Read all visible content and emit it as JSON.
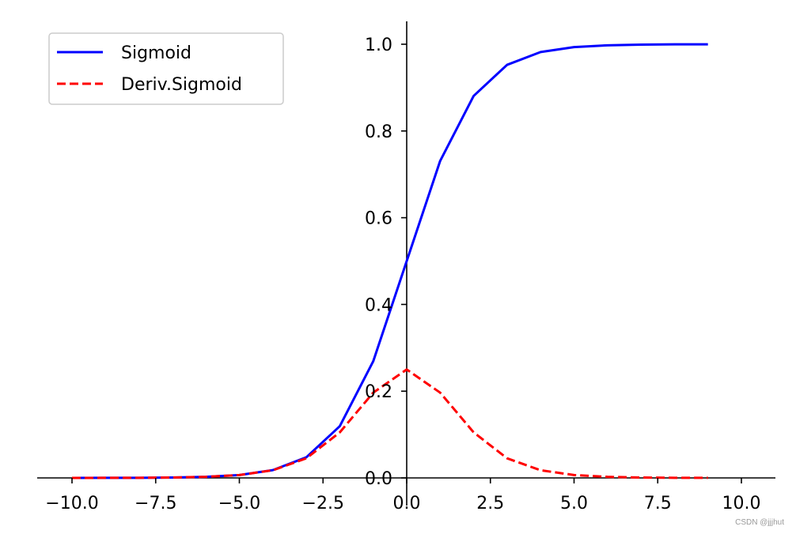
{
  "chart_data": {
    "type": "line",
    "title": "",
    "xlabel": "",
    "ylabel": "",
    "xlim": [
      -11.0,
      11.0
    ],
    "ylim": [
      0.0,
      1.05
    ],
    "grid": false,
    "legend_position": "top-left",
    "spines": "centered at zero",
    "x_ticks": [
      -10.0,
      -7.5,
      -5.0,
      -2.5,
      0.0,
      2.5,
      5.0,
      7.5,
      10.0
    ],
    "x_tick_labels": [
      "−10.0",
      "−7.5",
      "−5.0",
      "−2.5",
      "0.0",
      "2.5",
      "5.0",
      "7.5",
      "10.0"
    ],
    "y_ticks": [
      0.0,
      0.2,
      0.4,
      0.6,
      0.8,
      1.0
    ],
    "y_tick_labels": [
      "0.0",
      "0.2",
      "0.4",
      "0.6",
      "0.8",
      "1.0"
    ],
    "x": [
      -10,
      -9,
      -8,
      -7,
      -6,
      -5,
      -4,
      -3,
      -2,
      -1,
      0,
      1,
      2,
      3,
      4,
      5,
      6,
      7,
      8,
      9
    ],
    "series": [
      {
        "name": "Sigmoid",
        "color": "#0000ff",
        "linestyle": "solid",
        "values": [
          4.54e-05,
          0.0001234,
          0.0003354,
          0.0009111,
          0.0024726,
          0.0066929,
          0.0179862,
          0.0474259,
          0.1192029,
          0.2689414,
          0.5,
          0.7310586,
          0.8807971,
          0.9525741,
          0.9820138,
          0.9933071,
          0.9975274,
          0.9990889,
          0.9996646,
          0.9998766
        ]
      },
      {
        "name": "Deriv.Sigmoid",
        "color": "#ff0000",
        "linestyle": "dashed",
        "values": [
          4.54e-05,
          0.0001234,
          0.0003353,
          0.0009102,
          0.0024665,
          0.0066481,
          0.0176627,
          0.0451767,
          0.1049936,
          0.1966119,
          0.25,
          0.1966119,
          0.1049936,
          0.0451767,
          0.0176627,
          0.0066481,
          0.0024665,
          0.0009102,
          0.0003353,
          0.0001234
        ]
      }
    ]
  },
  "watermark": "CSDN @jjjhut"
}
